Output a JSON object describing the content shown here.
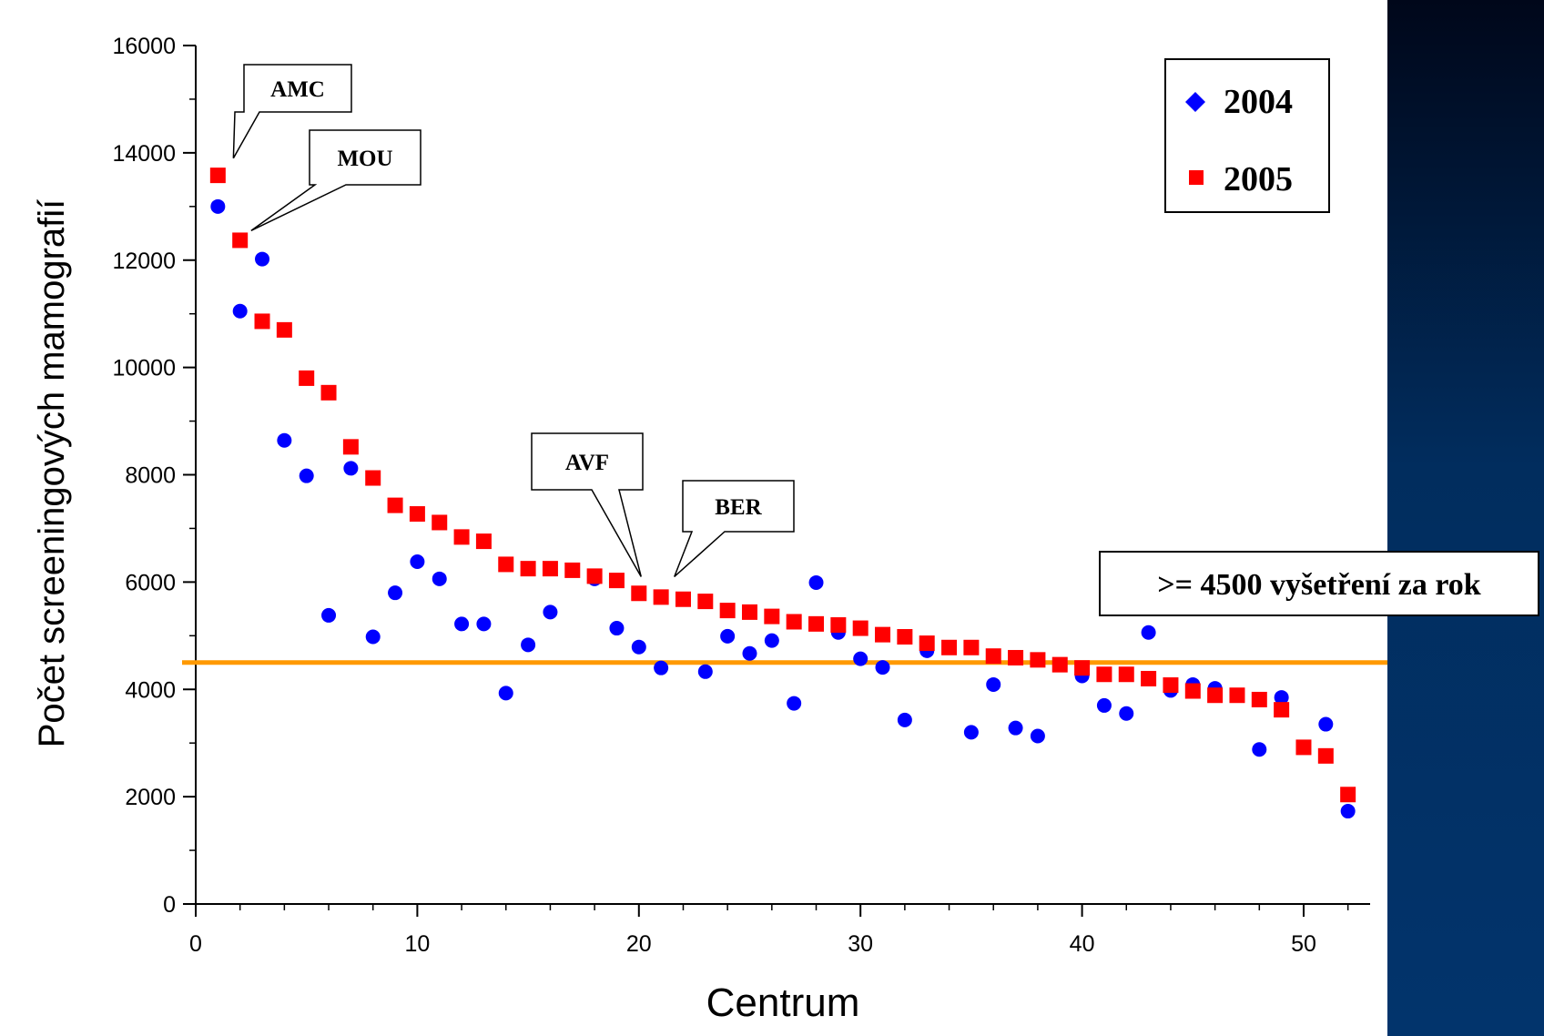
{
  "chart_data": {
    "type": "scatter",
    "xlabel": "Centrum",
    "ylabel": "Počet screeningových mamografií",
    "xlim": [
      0,
      53
    ],
    "ylim": [
      0,
      16000
    ],
    "x_ticks": [
      0,
      10,
      20,
      30,
      40,
      50
    ],
    "y_ticks": [
      0,
      2000,
      4000,
      6000,
      8000,
      10000,
      12000,
      14000,
      16000
    ],
    "x_tick_labels": [
      "0",
      "10",
      "20",
      "30",
      "40",
      "50"
    ],
    "y_tick_labels": [
      "0",
      "2000",
      "4000",
      "6000",
      "8000",
      "10000",
      "12000",
      "14000",
      "16000"
    ],
    "grid": false,
    "legend_position": "top-right",
    "series": [
      {
        "name": "2004",
        "color": "#0000ff",
        "marker": "circle",
        "legend_marker": "diamond",
        "x": [
          1,
          2,
          3,
          4,
          5,
          6,
          7,
          8,
          9,
          10,
          11,
          12,
          13,
          14,
          15,
          16,
          18,
          19,
          20,
          21,
          23,
          24,
          25,
          26,
          27,
          28,
          29,
          30,
          31,
          32,
          33,
          35,
          36,
          37,
          38,
          40,
          41,
          42,
          43,
          44,
          45,
          46,
          48,
          49,
          51,
          52
        ],
        "y": [
          13000,
          11050,
          12020,
          8640,
          7980,
          5380,
          8120,
          4980,
          5800,
          6380,
          6060,
          5220,
          5220,
          3930,
          4830,
          5440,
          6060,
          5140,
          4790,
          4400,
          4330,
          4990,
          4670,
          4910,
          3740,
          5990,
          5060,
          4570,
          4410,
          3430,
          4720,
          3200,
          4090,
          3280,
          3130,
          4250,
          3700,
          3550,
          5060,
          3980,
          4090,
          4020,
          2880,
          3850,
          3350,
          1730
        ]
      },
      {
        "name": "2005",
        "color": "#ff0000",
        "marker": "square",
        "legend_marker": "square",
        "x": [
          1,
          2,
          3,
          4,
          5,
          6,
          7,
          8,
          9,
          10,
          11,
          12,
          13,
          14,
          15,
          16,
          17,
          18,
          19,
          20,
          21,
          22,
          23,
          24,
          25,
          26,
          27,
          28,
          29,
          30,
          31,
          32,
          33,
          34,
          35,
          36,
          37,
          38,
          39,
          40,
          41,
          42,
          43,
          44,
          45,
          46,
          47,
          48,
          49,
          50,
          51,
          52
        ],
        "y": [
          13580,
          12370,
          10860,
          10700,
          9800,
          9530,
          8520,
          7940,
          7430,
          7270,
          7110,
          6840,
          6760,
          6330,
          6250,
          6250,
          6220,
          6110,
          6030,
          5790,
          5720,
          5680,
          5640,
          5470,
          5440,
          5360,
          5260,
          5220,
          5200,
          5140,
          5020,
          4980,
          4860,
          4780,
          4780,
          4620,
          4590,
          4550,
          4460,
          4400,
          4280,
          4280,
          4200,
          4080,
          3970,
          3890,
          3890,
          3810,
          3620,
          2920,
          2760,
          2040
        ]
      }
    ],
    "reference_line": {
      "y": 4500,
      "color": "#ff9900",
      "label": ">= 4500 vyšetření za rok"
    },
    "annotations": [
      {
        "text": "AMC",
        "x": 1.7,
        "y": 13900
      },
      {
        "text": "MOU",
        "x": 2.5,
        "y": 12550
      },
      {
        "text": "AVF",
        "x": 20.1,
        "y": 6100
      },
      {
        "text": "BER",
        "x": 21.6,
        "y": 6100
      }
    ]
  }
}
